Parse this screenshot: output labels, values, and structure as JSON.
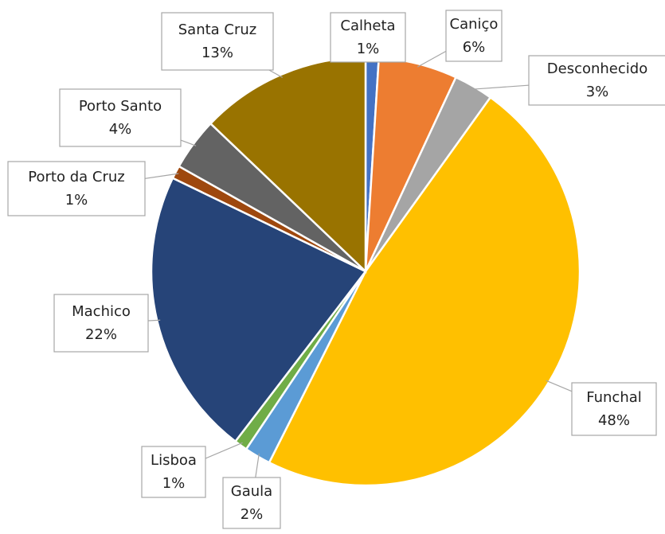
{
  "chart_data": {
    "type": "pie",
    "categories": [
      "Calheta",
      "Caniço",
      "Desconhecido",
      "Funchal",
      "Gaula",
      "Lisboa",
      "Machico",
      "Porto da Cruz",
      "Porto Santo",
      "Santa Cruz"
    ],
    "values": [
      1,
      6,
      3,
      48,
      2,
      1,
      22,
      1,
      4,
      13
    ],
    "value_labels": [
      "1%",
      "6%",
      "3%",
      "48%",
      "2%",
      "1%",
      "22%",
      "1%",
      "4%",
      "13%"
    ],
    "colors": [
      "#4472c4",
      "#ed7d31",
      "#a5a5a5",
      "#ffc000",
      "#5b9bd5",
      "#70ad47",
      "#264478",
      "#9e480e",
      "#636363",
      "#997300"
    ]
  }
}
